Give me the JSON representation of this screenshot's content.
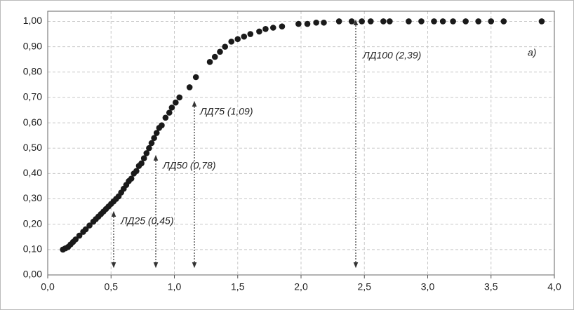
{
  "chart_data": {
    "type": "scatter",
    "color": "#1a1a1a",
    "grid": true,
    "xlim": [
      0,
      4
    ],
    "ylim": [
      0,
      1.04
    ],
    "xticks": [
      {
        "value": 0,
        "label": "0,0"
      },
      {
        "value": 0.5,
        "label": "0,5"
      },
      {
        "value": 1,
        "label": "1,0"
      },
      {
        "value": 1.5,
        "label": "1,5"
      },
      {
        "value": 2,
        "label": "2,0"
      },
      {
        "value": 2.5,
        "label": "2,5"
      },
      {
        "value": 3,
        "label": "3,0"
      },
      {
        "value": 3.5,
        "label": "3,5"
      },
      {
        "value": 4,
        "label": "4,0"
      }
    ],
    "yticks": [
      {
        "value": 0,
        "label": "0,00"
      },
      {
        "value": 0.1,
        "label": "0,10"
      },
      {
        "value": 0.2,
        "label": "0,20"
      },
      {
        "value": 0.3,
        "label": "0,30"
      },
      {
        "value": 0.4,
        "label": "0,40"
      },
      {
        "value": 0.5,
        "label": "0,50"
      },
      {
        "value": 0.6,
        "label": "0,60"
      },
      {
        "value": 0.7,
        "label": "0,70"
      },
      {
        "value": 0.8,
        "label": "0,80"
      },
      {
        "value": 0.9,
        "label": "0,90"
      },
      {
        "value": 1,
        "label": "1,00"
      }
    ],
    "annotations": [
      "ЛД25 (0,45)",
      "ЛД50 (0,78)",
      "ЛД75 (1,09)",
      "ЛД100 (2,39)",
      "а)"
    ],
    "x": [
      0.12,
      0.14,
      0.16,
      0.18,
      0.2,
      0.22,
      0.25,
      0.28,
      0.3,
      0.33,
      0.36,
      0.38,
      0.4,
      0.42,
      0.44,
      0.46,
      0.48,
      0.5,
      0.52,
      0.54,
      0.56,
      0.58,
      0.6,
      0.62,
      0.64,
      0.66,
      0.68,
      0.7,
      0.72,
      0.74,
      0.76,
      0.78,
      0.8,
      0.82,
      0.84,
      0.86,
      0.88,
      0.9,
      0.93,
      0.96,
      0.98,
      1.01,
      1.04,
      1.12,
      1.17,
      1.28,
      1.32,
      1.36,
      1.4,
      1.45,
      1.5,
      1.55,
      1.6,
      1.67,
      1.72,
      1.78,
      1.85,
      1.98,
      2.05,
      2.12,
      2.18,
      2.3,
      2.4,
      2.48,
      2.55,
      2.65,
      2.7,
      2.85,
      2.95,
      3.05,
      3.12,
      3.2,
      3.3,
      3.4,
      3.5,
      3.6,
      3.9
    ],
    "values": [
      0.1,
      0.105,
      0.11,
      0.12,
      0.13,
      0.14,
      0.155,
      0.17,
      0.18,
      0.195,
      0.21,
      0.22,
      0.23,
      0.24,
      0.25,
      0.26,
      0.27,
      0.28,
      0.29,
      0.3,
      0.31,
      0.325,
      0.34,
      0.355,
      0.37,
      0.38,
      0.4,
      0.41,
      0.43,
      0.44,
      0.46,
      0.48,
      0.5,
      0.52,
      0.54,
      0.56,
      0.58,
      0.59,
      0.62,
      0.64,
      0.66,
      0.68,
      0.7,
      0.74,
      0.78,
      0.84,
      0.86,
      0.88,
      0.9,
      0.92,
      0.93,
      0.94,
      0.95,
      0.96,
      0.97,
      0.975,
      0.98,
      0.99,
      0.99,
      0.995,
      0.995,
      1,
      1,
      1,
      1,
      1,
      1,
      1,
      1,
      1,
      1,
      1,
      1,
      1,
      1,
      1,
      1
    ]
  }
}
